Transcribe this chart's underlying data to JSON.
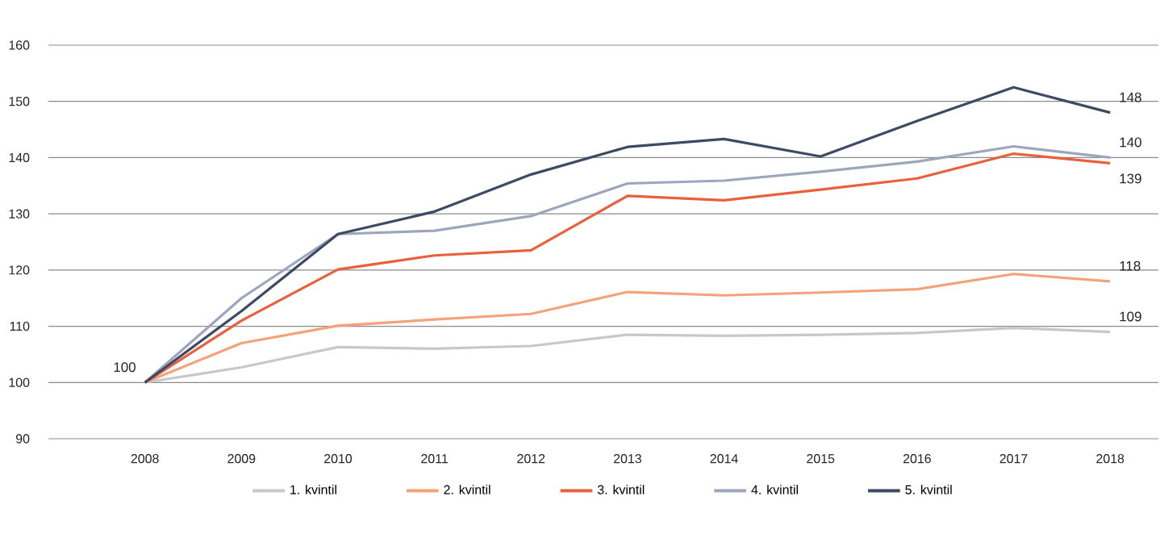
{
  "chart_data": {
    "type": "line",
    "categories": [
      "2008",
      "2009",
      "2010",
      "2011",
      "2012",
      "2013",
      "2014",
      "2015",
      "2016",
      "2017",
      "2018"
    ],
    "series": [
      {
        "name": "1. kvintil",
        "color": "#c8c8c8",
        "values": [
          100,
          102.7,
          106.3,
          106,
          106.5,
          108.5,
          108.3,
          108.5,
          108.8,
          109.7,
          109
        ],
        "value_labels": [
          "100",
          null,
          null,
          null,
          null,
          null,
          null,
          null,
          null,
          null,
          "109"
        ]
      },
      {
        "name": "2. kvintil",
        "color": "#f5a27a",
        "values": [
          100,
          107,
          110.1,
          111.2,
          112.2,
          116.1,
          115.5,
          116,
          116.6,
          119.3,
          118
        ],
        "value_labels": [
          null,
          null,
          null,
          null,
          null,
          null,
          null,
          null,
          null,
          null,
          "118"
        ]
      },
      {
        "name": "3. kvintil",
        "color": "#e8603c",
        "values": [
          100,
          111,
          120.1,
          122.6,
          123.5,
          133.2,
          132.4,
          134.3,
          136.3,
          140.7,
          139
        ],
        "value_labels": [
          null,
          null,
          null,
          null,
          null,
          null,
          null,
          null,
          null,
          null,
          "139"
        ]
      },
      {
        "name": "4. kvintil",
        "color": "#9ea6bd",
        "values": [
          100,
          115,
          126.4,
          127,
          129.6,
          135.4,
          135.9,
          137.5,
          139.3,
          142,
          140
        ],
        "value_labels": [
          null,
          null,
          null,
          null,
          null,
          null,
          null,
          null,
          null,
          null,
          "140"
        ]
      },
      {
        "name": "5. kvintil",
        "color": "#3c4a64",
        "values": [
          100,
          112.7,
          126.4,
          130.4,
          137,
          141.9,
          143.3,
          140.2,
          146.5,
          152.5,
          148
        ],
        "value_labels": [
          null,
          null,
          null,
          null,
          null,
          null,
          null,
          null,
          null,
          null,
          "148"
        ]
      }
    ],
    "ylim": [
      90,
      160
    ],
    "yticks": [
      90,
      100,
      110,
      120,
      130,
      140,
      150,
      160
    ],
    "grid": "y",
    "legend": "bottom",
    "marker": "none",
    "line_style": "solid"
  }
}
